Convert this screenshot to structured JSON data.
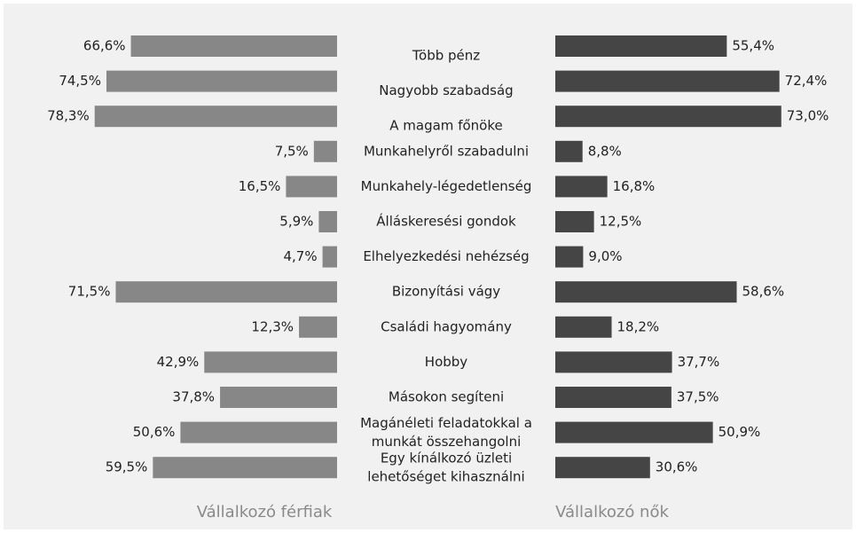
{
  "chart_data": {
    "type": "butterfly",
    "categories": [
      "Több pénz",
      "Nagyobb szabadság",
      "A magam főnöke",
      "Munkahelyről szabadulni",
      "Munkahely-légedetlenség",
      "Álláskeresési gondok",
      "Elhelyezkedési nehézség",
      "Bizonyítási vágy",
      "Családi hagyomány",
      "Hobby",
      "Másokon segíteni",
      [
        "Magánéleti feladatokkal a",
        "munkát összehangolni"
      ],
      [
        "Egy kínálkozó üzleti",
        "lehetőséget kihasználni"
      ]
    ],
    "series": [
      {
        "name": "Vállalkozó férfiak",
        "color": "#878787",
        "values": [
          66.6,
          74.5,
          78.3,
          7.5,
          16.5,
          5.9,
          4.7,
          71.5,
          12.3,
          42.9,
          37.8,
          50.6,
          59.5
        ],
        "value_labels": [
          "66,6%",
          "74,5%",
          "78,3%",
          "7,5%",
          "16,5%",
          "5,9%",
          "4,7%",
          "71,5%",
          "12,3%",
          "42,9%",
          "37,8%",
          "50,6%",
          "59,5%"
        ]
      },
      {
        "name": "Vállalkozó nők",
        "color": "#454545",
        "values": [
          55.4,
          72.4,
          73.0,
          8.8,
          16.8,
          12.5,
          9.0,
          58.6,
          18.2,
          37.7,
          37.5,
          50.9,
          30.6
        ],
        "value_labels": [
          "55,4%",
          "72,4%",
          "73,0%",
          "8,8%",
          "16,8%",
          "12,5%",
          "9,0%",
          "58,6%",
          "18,2%",
          "37,7%",
          "37,5%",
          "50,9%",
          "30,6%"
        ]
      }
    ]
  }
}
